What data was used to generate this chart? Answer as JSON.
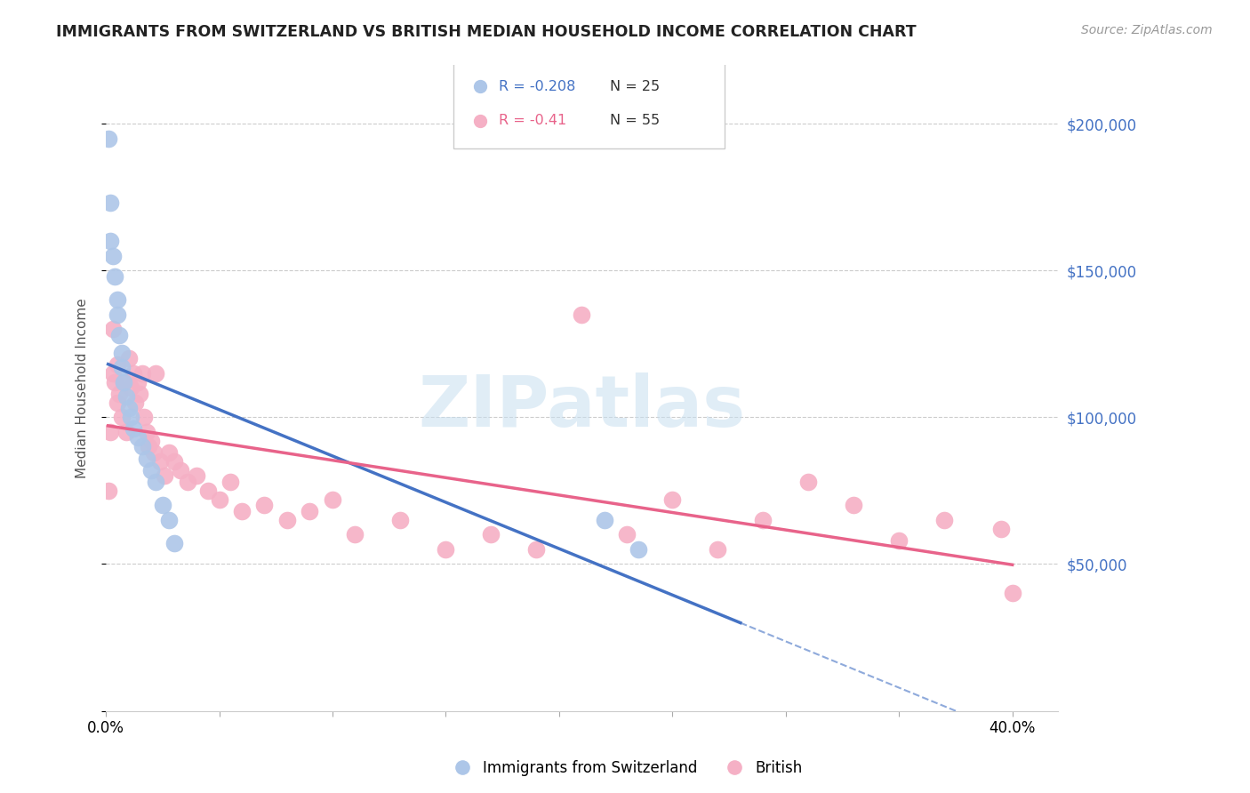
{
  "title": "IMMIGRANTS FROM SWITZERLAND VS BRITISH MEDIAN HOUSEHOLD INCOME CORRELATION CHART",
  "source": "Source: ZipAtlas.com",
  "ylabel": "Median Household Income",
  "xlim": [
    0.0,
    0.42
  ],
  "ylim": [
    0,
    220000
  ],
  "watermark": "ZIPatlas",
  "swiss_R": -0.208,
  "swiss_N": 25,
  "british_R": -0.41,
  "british_N": 55,
  "swiss_color": "#adc6e8",
  "british_color": "#f5b0c5",
  "swiss_line_color": "#4472c4",
  "british_line_color": "#e8638a",
  "legend_R_color": "#e05070",
  "legend_swiss_R_color": "#4472c4",
  "right_tick_color": "#4472c4",
  "swiss_x": [
    0.001,
    0.002,
    0.002,
    0.003,
    0.004,
    0.005,
    0.005,
    0.006,
    0.007,
    0.007,
    0.008,
    0.009,
    0.01,
    0.011,
    0.012,
    0.014,
    0.016,
    0.018,
    0.02,
    0.022,
    0.025,
    0.028,
    0.03,
    0.22,
    0.235
  ],
  "swiss_y": [
    195000,
    173000,
    160000,
    155000,
    148000,
    140000,
    135000,
    128000,
    122000,
    117000,
    112000,
    107000,
    103000,
    100000,
    96000,
    93000,
    90000,
    86000,
    82000,
    78000,
    70000,
    65000,
    57000,
    65000,
    55000
  ],
  "british_x": [
    0.001,
    0.002,
    0.003,
    0.003,
    0.004,
    0.005,
    0.005,
    0.006,
    0.007,
    0.008,
    0.009,
    0.01,
    0.011,
    0.012,
    0.013,
    0.014,
    0.015,
    0.016,
    0.017,
    0.018,
    0.019,
    0.02,
    0.021,
    0.022,
    0.024,
    0.026,
    0.028,
    0.03,
    0.033,
    0.036,
    0.04,
    0.045,
    0.05,
    0.055,
    0.06,
    0.07,
    0.08,
    0.09,
    0.1,
    0.11,
    0.13,
    0.15,
    0.17,
    0.19,
    0.21,
    0.23,
    0.25,
    0.27,
    0.29,
    0.31,
    0.33,
    0.35,
    0.37,
    0.395,
    0.4
  ],
  "british_y": [
    75000,
    95000,
    115000,
    130000,
    112000,
    118000,
    105000,
    108000,
    100000,
    112000,
    95000,
    120000,
    110000,
    115000,
    105000,
    112000,
    108000,
    115000,
    100000,
    95000,
    90000,
    92000,
    88000,
    115000,
    85000,
    80000,
    88000,
    85000,
    82000,
    78000,
    80000,
    75000,
    72000,
    78000,
    68000,
    70000,
    65000,
    68000,
    72000,
    60000,
    65000,
    55000,
    60000,
    55000,
    135000,
    60000,
    72000,
    55000,
    65000,
    78000,
    70000,
    58000,
    65000,
    62000,
    40000
  ]
}
